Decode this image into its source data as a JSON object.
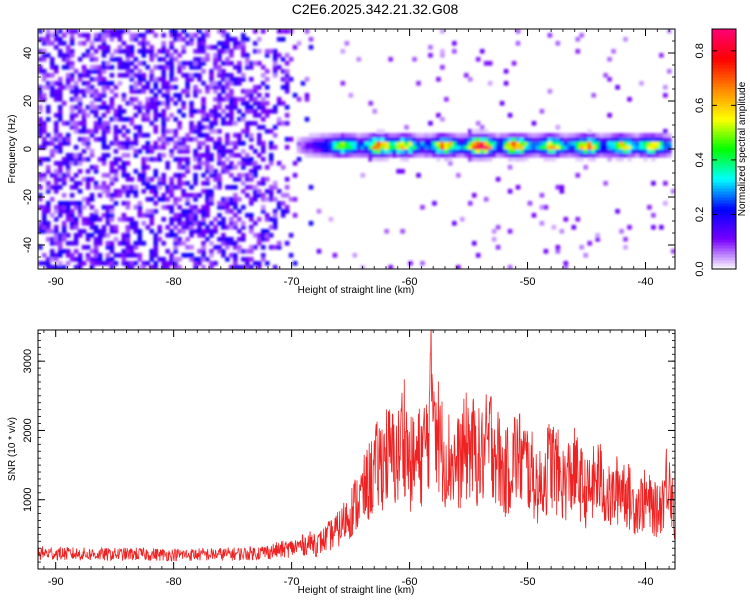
{
  "title": "C2E6.2025.342.21.32.G08",
  "chart_data": [
    {
      "type": "heatmap",
      "name": "spectrogram",
      "xlabel": "Height of straight line (km)",
      "ylabel": "Frequency (Hz)",
      "xlim": [
        -91.5,
        -37.5
      ],
      "ylim": [
        -50,
        50
      ],
      "xticks": [
        -90,
        -80,
        -70,
        -60,
        -50,
        -40
      ],
      "xtick_labels": [
        "-90",
        "-80",
        "-70",
        "-60",
        "-50",
        "-40"
      ],
      "yticks": [
        -40,
        -20,
        0,
        20,
        40
      ],
      "ytick_labels": [
        "-40",
        "-20",
        "0",
        "20",
        "40"
      ],
      "noise_region": {
        "x_range": [
          -91.5,
          -68
        ],
        "typical_amplitude": 0.12
      },
      "signal_band": {
        "x_range": [
          -70,
          -38
        ],
        "frequency_center_hz": 1.5,
        "half_width_hz": 4,
        "peaks": [
          {
            "x": -65.5,
            "amplitude": 0.55
          },
          {
            "x": -62.5,
            "amplitude": 0.7
          },
          {
            "x": -60.5,
            "amplitude": 0.6
          },
          {
            "x": -57.0,
            "amplitude": 0.65
          },
          {
            "x": -54.0,
            "amplitude": 0.88
          },
          {
            "x": -51.0,
            "amplitude": 0.72
          },
          {
            "x": -48.0,
            "amplitude": 0.6
          },
          {
            "x": -45.0,
            "amplitude": 0.65
          },
          {
            "x": -42.0,
            "amplitude": 0.6
          },
          {
            "x": -39.5,
            "amplitude": 0.58
          }
        ]
      },
      "colorbar": {
        "label": "Normalized spectral amplitude",
        "range": [
          0,
          0.88
        ],
        "ticks": [
          0.0,
          0.2,
          0.4,
          0.6,
          0.8
        ],
        "tick_labels": [
          "0.0",
          "0.2",
          "0.4",
          "0.6",
          "0.8"
        ],
        "colors": [
          "#ffffff",
          "#7700ff",
          "#0000ff",
          "#00ffff",
          "#00ff00",
          "#ffff00",
          "#ff8800",
          "#ff0000",
          "#ff0077"
        ]
      }
    },
    {
      "type": "line",
      "name": "snr",
      "xlabel": "Height of straight line (km)",
      "ylabel": "SNR (10 * v/v)",
      "xlim": [
        -91.5,
        -37.5
      ],
      "ylim": [
        0,
        3450
      ],
      "xticks": [
        -90,
        -80,
        -70,
        -60,
        -50,
        -40
      ],
      "xtick_labels": [
        "-90",
        "-80",
        "-70",
        "-60",
        "-50",
        "-40"
      ],
      "yticks": [
        1000,
        2000,
        3000
      ],
      "ytick_labels": [
        "1000",
        "2000",
        "3000"
      ],
      "series": [
        {
          "name": "SNR",
          "color": "#ee2222",
          "x": [
            -91.5,
            -89,
            -86,
            -83,
            -80,
            -77,
            -74,
            -72,
            -70,
            -68,
            -66,
            -65,
            -64,
            -63,
            -62,
            -61,
            -60.5,
            -60,
            -59,
            -58.5,
            -58,
            -57.5,
            -57,
            -56,
            -55,
            -54,
            -53,
            -52,
            -51,
            -50,
            -49,
            -48,
            -47,
            -46,
            -45,
            -44,
            -43,
            -42,
            -41,
            -40,
            -39,
            -38.5,
            -38,
            -37.5
          ],
          "values": [
            230,
            220,
            210,
            215,
            205,
            210,
            220,
            250,
            300,
            400,
            700,
            1000,
            1300,
            1700,
            2000,
            1900,
            2500,
            1800,
            2000,
            2250,
            3400,
            2200,
            2000,
            1800,
            2200,
            1900,
            2300,
            1600,
            2000,
            1800,
            1400,
            1900,
            1500,
            1700,
            1300,
            1600,
            1200,
            1500,
            1100,
            1200,
            1000,
            1250,
            1800,
            700
          ],
          "noise_amplitude": 0.35
        }
      ]
    }
  ]
}
